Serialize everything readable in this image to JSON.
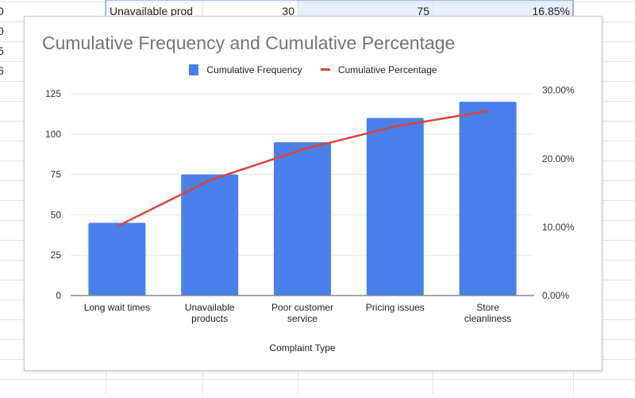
{
  "sheet": {
    "left_column_fragments": [
      "0",
      "0",
      "5",
      "5"
    ],
    "visible_row": {
      "label": "Unavailable prod",
      "frequency": "30",
      "cumulative_frequency": "75",
      "cumulative_percentage": "16.85%"
    },
    "selection_color": "#e8eefb"
  },
  "chart_data": {
    "type": "bar+line",
    "title": "Cumulative Frequency and Cumulative Percentage",
    "xlabel": "Complaint Type",
    "categories": [
      "Long wait times",
      "Unavailable products",
      "Poor customer service",
      "Pricing issues",
      "Store cleanliness"
    ],
    "category_lines": [
      [
        "Long wait times"
      ],
      [
        "Unavailable",
        "products"
      ],
      [
        "Poor customer",
        "service"
      ],
      [
        "Pricing issues"
      ],
      [
        "Store",
        "cleanliness"
      ]
    ],
    "series": [
      {
        "name": "Cumulative Frequency",
        "type": "bar",
        "axis": "left",
        "color": "#4a80ec",
        "values": [
          45,
          75,
          95,
          110,
          120
        ]
      },
      {
        "name": "Cumulative Percentage",
        "type": "line",
        "axis": "right",
        "color": "#e04438",
        "values": [
          10.11,
          16.85,
          21.35,
          24.72,
          26.97
        ]
      }
    ],
    "y_left": {
      "range": [
        0,
        125
      ],
      "ticks": [
        "0",
        "25",
        "50",
        "75",
        "100",
        "125"
      ]
    },
    "y_right": {
      "range": [
        0,
        29.5
      ],
      "ticks": [
        "0.00%",
        "10.00%",
        "20.00%",
        "30.00%"
      ],
      "tick_values": [
        0,
        10,
        20,
        30
      ]
    },
    "grid": true,
    "legend": "top"
  }
}
